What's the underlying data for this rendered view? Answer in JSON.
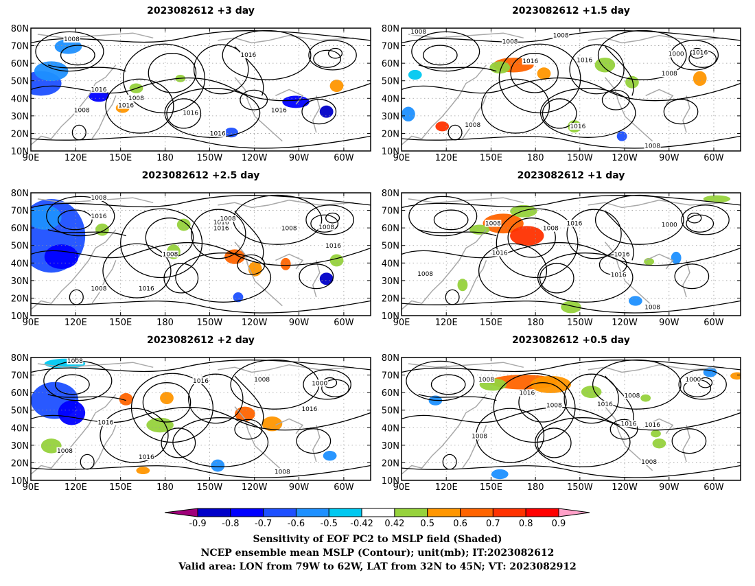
{
  "figure": {
    "panels": [
      {
        "title": "2023082612  +3  day",
        "labels": [
          "1008",
          "1016",
          "1008",
          "1016",
          "1008",
          "1016",
          "1016",
          "1016",
          "1016"
        ]
      },
      {
        "title": "2023082612  +1.5  day",
        "labels": [
          "1008",
          "1008",
          "1008",
          "1016",
          "1016",
          "1000",
          "1016",
          "1008",
          "1008",
          "1016",
          "1008"
        ]
      },
      {
        "title": "2023082612  +2.5  day",
        "labels": [
          "1008",
          "1016",
          "1016",
          "1016",
          "1008",
          "1008",
          "1008",
          "1016",
          "1008",
          "1016",
          "1008"
        ]
      },
      {
        "title": "2023082612  +1  day",
        "labels": [
          "1008",
          "1008",
          "1016",
          "1016",
          "1000",
          "1016",
          "1008",
          "1016",
          "1008"
        ]
      },
      {
        "title": "2023082612  +2  day",
        "labels": [
          "1008",
          "1016",
          "1008",
          "1016",
          "1000",
          "1016",
          "1008",
          "1016",
          "1008"
        ]
      },
      {
        "title": "2023082612  +0.5  day",
        "labels": [
          "1008",
          "1016",
          "1008",
          "1016",
          "1000",
          "1008",
          "1016",
          "1008",
          "1016",
          "1008"
        ]
      }
    ],
    "lat_ticks": [
      "80N",
      "70N",
      "60N",
      "50N",
      "40N",
      "30N",
      "20N",
      "10N"
    ],
    "lon_ticks": [
      "90E",
      "120E",
      "150E",
      "180",
      "150W",
      "120W",
      "90W",
      "60W"
    ],
    "colorbar": {
      "colors": [
        "#a0007a",
        "#0000c8",
        "#0000ff",
        "#1e50ff",
        "#1e90ff",
        "#00c8f0",
        "#ffffff",
        "#96d23c",
        "#ff9600",
        "#ff6400",
        "#ff3200",
        "#ff0000",
        "#ffa0c8"
      ],
      "labels": [
        "-0.9",
        "-0.8",
        "-0.7",
        "-0.6",
        "-0.5",
        "-0.42",
        "0.42",
        "0.5",
        "0.6",
        "0.7",
        "0.8",
        "0.9"
      ]
    },
    "caption": {
      "line1": "Sensitivity of EOF PC2 to MSLP field (Shaded)",
      "line2": "NCEP ensemble mean MSLP (Contour); unit(mb); IT:2023082612",
      "line3": "Valid area: LON from 79W to 62W, LAT from 32N to 45N; VT: 2023082912"
    }
  }
}
